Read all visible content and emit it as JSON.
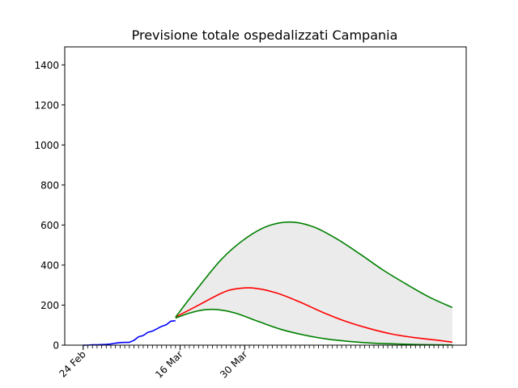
{
  "chart_data": {
    "type": "line",
    "title": "Previsione totale ospedalizzati Campania",
    "xlabel": "",
    "ylabel": "",
    "x_unit": "day",
    "xlim_days": [
      "2020-02-20",
      "2020-05-17"
    ],
    "ylim": [
      0,
      1490
    ],
    "yticks": [
      0,
      200,
      400,
      600,
      800,
      1000,
      1200,
      1400
    ],
    "xticks": [
      {
        "date": "2020-02-24",
        "label": "24 Feb"
      },
      {
        "date": "2020-03-16",
        "label": "16 Mar"
      },
      {
        "date": "2020-03-30",
        "label": "30 Mar"
      }
    ],
    "grid": false,
    "legend": "none",
    "colors": {
      "observed": "#0000ff",
      "central": "#ff0000",
      "bounds": "#008000",
      "band": "#ebebeb"
    },
    "series": [
      {
        "role": "observed",
        "color": "#0000ff",
        "dates": [
          "2020-02-24",
          "2020-02-25",
          "2020-02-26",
          "2020-02-27",
          "2020-02-28",
          "2020-02-29",
          "2020-03-01",
          "2020-03-02",
          "2020-03-03",
          "2020-03-04",
          "2020-03-05",
          "2020-03-06",
          "2020-03-07",
          "2020-03-08",
          "2020-03-09",
          "2020-03-10",
          "2020-03-11",
          "2020-03-12",
          "2020-03-13",
          "2020-03-14",
          "2020-03-15"
        ],
        "values": [
          0,
          0,
          2,
          2,
          3,
          4,
          6,
          10,
          13,
          14,
          14,
          24,
          42,
          48,
          64,
          70,
          82,
          94,
          102,
          120,
          122
        ]
      },
      {
        "role": "central",
        "color": "#ff0000",
        "dates": [
          "2020-03-15",
          "2020-03-20",
          "2020-03-25",
          "2020-03-28",
          "2020-04-01",
          "2020-04-06",
          "2020-04-11",
          "2020-04-16",
          "2020-04-21",
          "2020-04-26",
          "2020-05-01",
          "2020-05-06",
          "2020-05-11",
          "2020-05-14"
        ],
        "values": [
          140,
          200,
          260,
          281,
          285,
          260,
          215,
          163,
          118,
          83,
          55,
          37,
          24,
          15
        ]
      },
      {
        "role": "upper",
        "color": "#008000",
        "dates": [
          "2020-03-15",
          "2020-03-20",
          "2020-03-25",
          "2020-03-30",
          "2020-04-04",
          "2020-04-09",
          "2020-04-14",
          "2020-04-19",
          "2020-04-24",
          "2020-04-29",
          "2020-05-04",
          "2020-05-09",
          "2020-05-14"
        ],
        "values": [
          140,
          290,
          430,
          530,
          595,
          615,
          590,
          530,
          455,
          375,
          305,
          240,
          188
        ]
      },
      {
        "role": "lower",
        "color": "#008000",
        "dates": [
          "2020-03-15",
          "2020-03-18",
          "2020-03-21",
          "2020-03-24",
          "2020-03-28",
          "2020-04-02",
          "2020-04-07",
          "2020-04-12",
          "2020-04-17",
          "2020-04-22",
          "2020-04-27",
          "2020-05-02",
          "2020-05-07",
          "2020-05-14"
        ],
        "values": [
          135,
          160,
          176,
          178,
          160,
          118,
          78,
          50,
          30,
          18,
          10,
          6,
          3,
          1
        ]
      }
    ]
  }
}
